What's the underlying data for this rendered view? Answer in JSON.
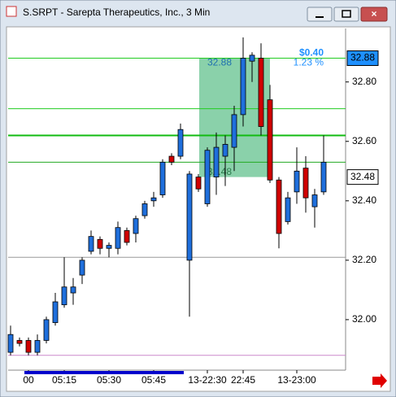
{
  "window_title": "S.SRPT - Sarepta Therapeutics, Inc., 3 Min",
  "chart_data": {
    "type": "candlestick",
    "categories": [
      null,
      null,
      "00",
      null,
      null,
      null,
      "05:15",
      null,
      null,
      null,
      null,
      "05:30",
      null,
      null,
      null,
      null,
      "05:45",
      null,
      null,
      null,
      null,
      null,
      "13-22:30",
      null,
      null,
      null,
      "22:45",
      null,
      null,
      null,
      null,
      null,
      "13-23:00",
      null,
      null,
      null
    ],
    "open": [
      31.89,
      31.93,
      31.93,
      31.89,
      31.93,
      31.99,
      32.05,
      32.09,
      32.15,
      32.23,
      32.27,
      32.24,
      32.24,
      32.3,
      32.29,
      32.35,
      32.4,
      32.42,
      32.55,
      32.55,
      32.2,
      32.48,
      32.39,
      32.48,
      32.55,
      32.58,
      32.69,
      32.87,
      32.88,
      32.74,
      32.47,
      32.33,
      32.43,
      32.51,
      32.38,
      32.43
    ],
    "high": [
      31.98,
      31.94,
      31.94,
      31.95,
      32.01,
      32.09,
      32.21,
      32.14,
      32.21,
      32.3,
      32.28,
      32.26,
      32.33,
      32.31,
      32.35,
      32.4,
      32.43,
      32.54,
      32.56,
      32.66,
      32.5,
      32.49,
      32.58,
      32.63,
      32.62,
      32.72,
      32.95,
      32.9,
      32.93,
      32.79,
      32.48,
      32.43,
      32.58,
      32.55,
      32.44,
      32.62
    ],
    "low": [
      31.88,
      31.91,
      31.88,
      31.88,
      31.92,
      31.98,
      32.04,
      32.05,
      32.12,
      32.22,
      32.22,
      32.21,
      32.22,
      32.25,
      32.26,
      32.34,
      32.38,
      32.41,
      32.52,
      32.54,
      32.01,
      32.43,
      32.38,
      32.42,
      32.45,
      32.5,
      32.65,
      32.8,
      32.62,
      32.46,
      32.24,
      32.32,
      32.39,
      32.36,
      32.31,
      32.42
    ],
    "close": [
      31.95,
      31.92,
      31.89,
      31.93,
      32.0,
      32.06,
      32.11,
      32.11,
      32.2,
      32.28,
      32.24,
      32.25,
      32.31,
      32.26,
      32.34,
      32.39,
      32.41,
      32.53,
      32.53,
      32.64,
      32.49,
      32.44,
      32.57,
      32.58,
      32.59,
      32.69,
      32.88,
      32.89,
      32.65,
      32.47,
      32.29,
      32.41,
      32.5,
      32.41,
      32.42,
      32.53
    ],
    "up_color": "#1f6fdc",
    "down_color": "#d00000",
    "ylim": [
      31.83,
      32.98
    ],
    "yticks": [
      {
        "value": 32.0,
        "label": "32.00"
      },
      {
        "value": 32.2,
        "label": "32.20"
      },
      {
        "value": 32.4,
        "label": "32.40"
      },
      {
        "value": 32.6,
        "label": "32.60"
      },
      {
        "value": 32.8,
        "label": "32.80"
      }
    ],
    "levels": [
      {
        "value": 32.88,
        "color": "#22cc22"
      },
      {
        "value": 32.71,
        "color": "#22cc22"
      },
      {
        "value": 32.62,
        "color": "#11bb11"
      },
      {
        "value": 32.53,
        "color": "#22aa22"
      },
      {
        "value": 32.21,
        "color": "#999999"
      },
      {
        "value": 31.88,
        "color": "#cc88cc"
      }
    ],
    "target": {
      "top": {
        "value": 32.88,
        "label": "32.88"
      },
      "bottom": {
        "value": 32.48,
        "label": "32.48"
      },
      "amount": "$0.40",
      "percent": "1.23 %",
      "color": "#3cb371"
    },
    "markers": [
      {
        "value": 32.88,
        "label": "32.88",
        "color": "#1e90ff"
      },
      {
        "value": 32.48,
        "label": "32.48",
        "color": "#ffffff"
      }
    ]
  }
}
